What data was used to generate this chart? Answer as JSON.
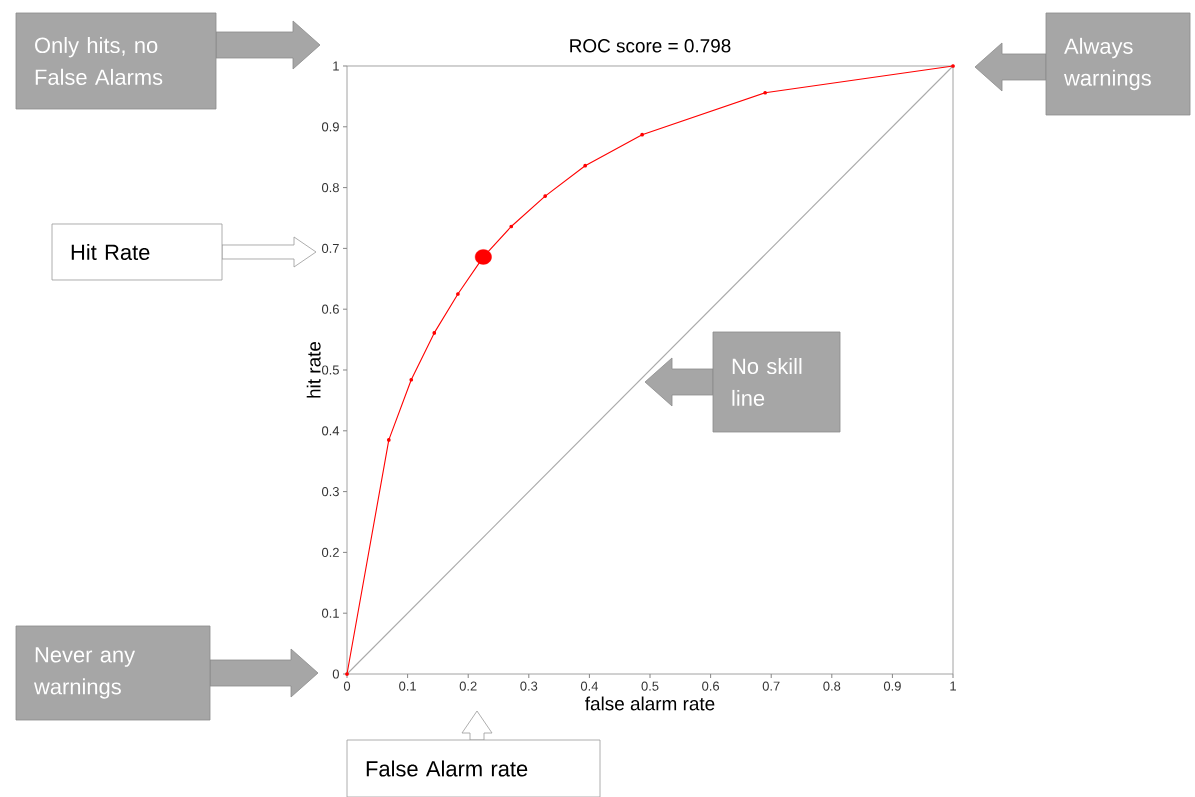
{
  "chart_data": {
    "type": "line",
    "title": "ROC score = 0.798",
    "xlabel": "false alarm rate",
    "ylabel": "hit rate",
    "xlim": [
      0,
      1
    ],
    "ylim": [
      0,
      1
    ],
    "xticks": [
      0,
      0.1,
      0.2,
      0.3,
      0.4,
      0.5,
      0.6,
      0.7,
      0.8,
      0.9,
      1
    ],
    "yticks": [
      0,
      0.1,
      0.2,
      0.3,
      0.4,
      0.5,
      0.6,
      0.7,
      0.8,
      0.9,
      1
    ],
    "grid": false,
    "series": [
      {
        "color": "#ff0000",
        "marker": "circle",
        "x": [
          0,
          0.069,
          0.106,
          0.144,
          0.183,
          0.225,
          0.271,
          0.327,
          0.393,
          0.487,
          0.69,
          1
        ],
        "values": [
          0,
          0.385,
          0.484,
          0.561,
          0.625,
          0.686,
          0.736,
          0.786,
          0.836,
          0.887,
          0.956,
          1
        ]
      },
      {
        "type": "line",
        "color": "#aaaaaa",
        "marker": "none",
        "x": [
          0,
          1
        ],
        "values": [
          0,
          1
        ]
      },
      {
        "type": "scatter",
        "color": "#ff0000",
        "marker": "circle",
        "x": [
          0.225
        ],
        "values": [
          0.686
        ]
      }
    ],
    "annotations": [
      "Only hits, no False Alarms",
      "Always warnings",
      "Hit Rate",
      "No skill line",
      "Never any warnings",
      "False Alarm rate"
    ]
  }
}
